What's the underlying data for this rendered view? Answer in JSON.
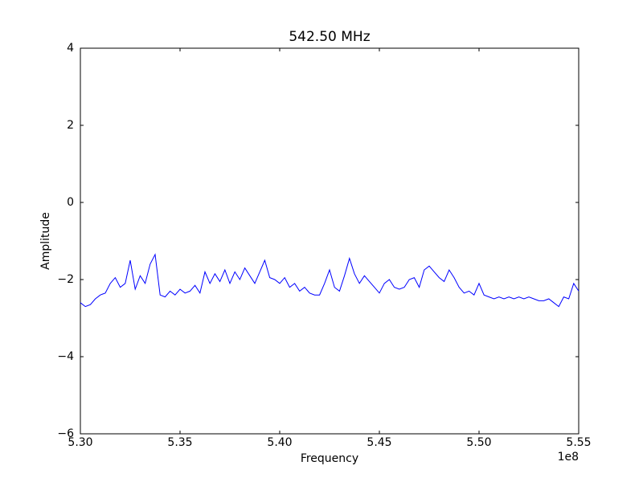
{
  "chart_data": {
    "type": "line",
    "title": "542.50 MHz",
    "x_label": "Frequency",
    "y_label": "Amplitude",
    "x_offset_label": "1e8",
    "color": "#0000ff",
    "x": [
      530000000,
      530250000,
      530500000,
      530750000,
      531000000,
      531250000,
      531500000,
      531750000,
      532000000,
      532250000,
      532500000,
      532750000,
      533000000,
      533250000,
      533500000,
      533750000,
      534000000,
      534250000,
      534500000,
      534750000,
      535000000,
      535250000,
      535500000,
      535750000,
      536000000,
      536250000,
      536500000,
      536750000,
      537000000,
      537250000,
      537500000,
      537750000,
      538000000,
      538250000,
      538500000,
      538750000,
      539000000,
      539250000,
      539500000,
      539750000,
      540000000,
      540250000,
      540500000,
      540750000,
      541000000,
      541250000,
      541500000,
      541750000,
      542000000,
      542250000,
      542500000,
      542750000,
      543000000,
      543250000,
      543500000,
      543750000,
      544000000,
      544250000,
      544500000,
      544750000,
      545000000,
      545250000,
      545500000,
      545750000,
      546000000,
      546250000,
      546500000,
      546750000,
      547000000,
      547250000,
      547500000,
      547750000,
      548000000,
      548250000,
      548500000,
      548750000,
      549000000,
      549250000,
      549500000,
      549750000,
      550000000,
      550250000,
      550500000,
      550750000,
      551000000,
      551250000,
      551500000,
      551750000,
      552000000,
      552250000,
      552500000,
      552750000,
      553000000,
      553250000,
      553500000,
      553750000,
      554000000,
      554250000,
      554500000,
      554750000,
      555000000
    ],
    "values": [
      -2.6,
      -2.7,
      -2.65,
      -2.5,
      -2.4,
      -2.35,
      -2.1,
      -1.95,
      -2.2,
      -2.1,
      -1.5,
      -2.25,
      -1.9,
      -2.1,
      -1.6,
      -1.35,
      -2.4,
      -2.45,
      -2.3,
      -2.4,
      -2.25,
      -2.35,
      -2.3,
      -2.15,
      -2.35,
      -1.8,
      -2.1,
      -1.85,
      -2.05,
      -1.75,
      -2.1,
      -1.8,
      -2.0,
      -1.7,
      -1.9,
      -2.1,
      -1.8,
      -1.5,
      -1.95,
      -2.0,
      -2.1,
      -1.95,
      -2.2,
      -2.1,
      -2.3,
      -2.2,
      -2.35,
      -2.4,
      -2.4,
      -2.1,
      -1.75,
      -2.2,
      -2.3,
      -1.9,
      -1.45,
      -1.85,
      -2.1,
      -1.9,
      -2.05,
      -2.2,
      -2.35,
      -2.1,
      -2.0,
      -2.2,
      -2.25,
      -2.2,
      -2.0,
      -1.95,
      -2.2,
      -1.75,
      -1.65,
      -1.8,
      -1.95,
      -2.05,
      -1.75,
      -1.95,
      -2.2,
      -2.35,
      -2.3,
      -2.4,
      -2.1,
      -2.4,
      -2.45,
      -2.5,
      -2.45,
      -2.5,
      -2.45,
      -2.5,
      -2.45,
      -2.5,
      -2.45,
      -2.5,
      -2.55,
      -2.55,
      -2.5,
      -2.6,
      -2.7,
      -2.45,
      -2.5,
      -2.1,
      -2.3
    ],
    "xlim": [
      530000000,
      555000000
    ],
    "xticks": [
      {
        "value": 530000000,
        "label": "5.30"
      },
      {
        "value": 535000000,
        "label": "5.35"
      },
      {
        "value": 540000000,
        "label": "5.40"
      },
      {
        "value": 545000000,
        "label": "5.45"
      },
      {
        "value": 550000000,
        "label": "5.50"
      },
      {
        "value": 555000000,
        "label": "5.55"
      }
    ],
    "ylim": [
      -6,
      4
    ],
    "yticks": [
      {
        "value": -6,
        "label": "−6"
      },
      {
        "value": -4,
        "label": "−4"
      },
      {
        "value": -2,
        "label": "−2"
      },
      0,
      2,
      4
    ],
    "grid": false
  }
}
